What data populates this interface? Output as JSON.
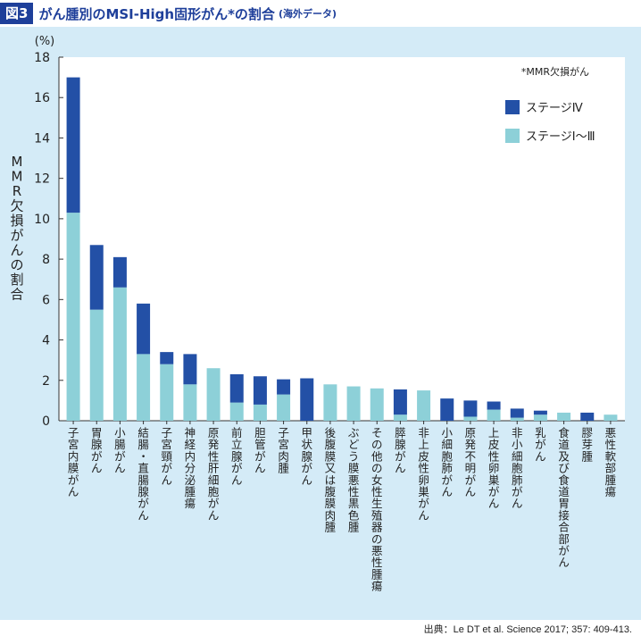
{
  "header": {
    "fig_tag": "図3",
    "title": "がん腫別のMSI-High固形がん*の割合",
    "subtitle": "(海外データ)"
  },
  "source": "出典：Le DT et al. Science 2017; 357: 409-413.",
  "chart_data": {
    "type": "bar",
    "stacked": true,
    "unit_label": "(%)",
    "ylabel": "MMR欠損がんの割合",
    "ylim": [
      0,
      18
    ],
    "yticks": [
      0,
      2,
      4,
      6,
      8,
      10,
      12,
      14,
      16,
      18
    ],
    "note": "*MMR欠損がん",
    "grid": false,
    "legend_position": "top-right",
    "categories": [
      "子宮内膜がん",
      "胃腺がん",
      "小腸がん",
      "結腸・直腸腺がん",
      "子宮頸がん",
      "神経内分泌腫瘍",
      "原発性肝細胞がん",
      "前立腺がん",
      "胆管がん",
      "子宮肉腫",
      "甲状腺がん",
      "後腹膜又は腹膜肉腫",
      "ぶどう膜悪性黒色腫",
      "その他の女性生殖器の悪性腫瘍",
      "膵腺がん",
      "非上皮性卵巣がん",
      "小細胞肺がん",
      "原発不明がん",
      "上皮性卵巣がん",
      "非小細胞肺がん",
      "乳がん",
      "食道及び食道胃接合部がん",
      "膠芽腫",
      "悪性軟部腫瘍"
    ],
    "series": [
      {
        "name": "ステージⅠ〜Ⅲ",
        "color": "#8dd0d8",
        "values": [
          10.3,
          5.5,
          6.6,
          3.3,
          2.8,
          1.8,
          2.6,
          0.9,
          0.8,
          1.3,
          0,
          1.8,
          1.7,
          1.6,
          0.3,
          1.5,
          0,
          0.2,
          0.55,
          0.15,
          0.3,
          0.4,
          0,
          0.3
        ]
      },
      {
        "name": "ステージⅣ",
        "color": "#2350a6",
        "values": [
          6.7,
          3.2,
          1.5,
          2.5,
          0.6,
          1.5,
          0,
          1.4,
          1.4,
          0.75,
          2.1,
          0,
          0,
          0,
          1.25,
          0,
          1.1,
          0.8,
          0.4,
          0.45,
          0.2,
          0,
          0.4,
          0
        ]
      }
    ]
  }
}
